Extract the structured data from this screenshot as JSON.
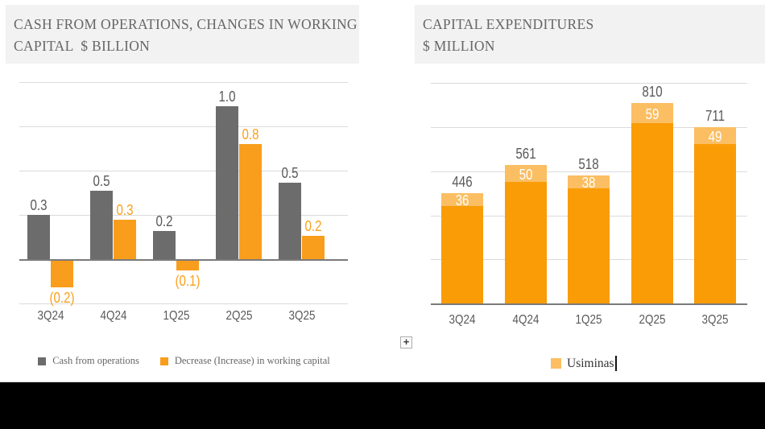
{
  "page": {
    "header_bg": "#F2F2F2",
    "title_color": "#666666",
    "bottom_bar_color": "#000000"
  },
  "left_chart": {
    "title_line1": "CASH FROM OPERATIONS, CHANGES IN WORKING",
    "title_line2": "CAPITAL  $ BILLION",
    "chart_data": {
      "type": "bar",
      "subtype": "grouped",
      "categories": [
        "3Q24",
        "4Q24",
        "1Q25",
        "2Q25",
        "3Q25"
      ],
      "series": [
        {
          "name": "Cash from operations",
          "color": "#6C6C6C",
          "values": [
            0.3,
            0.5,
            0.2,
            1.0,
            0.5
          ],
          "labels": [
            "0.3",
            "0.5",
            "0.2",
            "1.0",
            "0.5"
          ],
          "values_render": [
            0.3,
            0.465,
            0.19,
            1.04,
            0.52
          ]
        },
        {
          "name": "Decrease (Increase) in working capital",
          "color": "#F99D1C",
          "values": [
            -0.2,
            0.3,
            -0.1,
            0.8,
            0.2
          ],
          "labels": [
            "(0.2)",
            "0.3",
            "(0.1)",
            "0.8",
            "0.2"
          ],
          "values_render": [
            -0.18,
            0.27,
            -0.065,
            0.78,
            0.16
          ]
        }
      ],
      "ylim": [
        -0.3,
        1.2
      ],
      "gridline_step": 0.3,
      "grid": true,
      "legend_position": "bottom"
    }
  },
  "right_chart": {
    "title_line1": "CAPITAL EXPENDITURES",
    "title_line2": "$ MILLION",
    "chart_data": {
      "type": "bar",
      "subtype": "stacked",
      "categories": [
        "3Q24",
        "4Q24",
        "1Q25",
        "2Q25",
        "3Q25"
      ],
      "totals": [
        446,
        561,
        518,
        810,
        711
      ],
      "total_labels": [
        "446",
        "561",
        "518",
        "810",
        "711"
      ],
      "segment_name": "Usiminas",
      "segment_values": [
        36,
        50,
        38,
        59,
        49
      ],
      "segment_labels": [
        "36",
        "50",
        "38",
        "59",
        "49"
      ],
      "colors": {
        "main": "#F99C06",
        "segment": "#FBBE62"
      },
      "ylim": [
        0,
        900
      ],
      "grid": true,
      "legend_position": "bottom"
    },
    "legend_label": "Usiminas"
  },
  "misc": {
    "table_handle_icon": "plus",
    "plus_glyph": "+"
  }
}
